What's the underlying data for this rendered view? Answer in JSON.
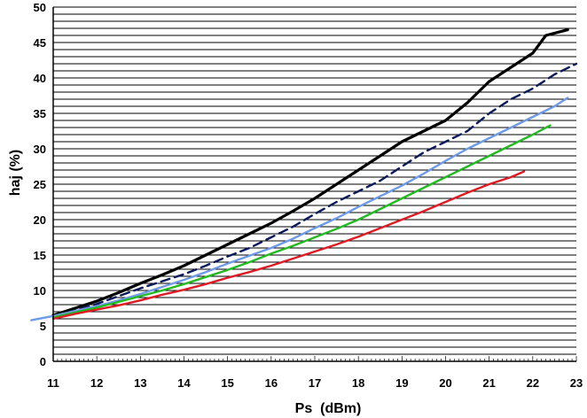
{
  "chart_data": {
    "type": "line",
    "xlabel": "Ps  (dBm)",
    "ylabel": "haj (%)",
    "xlim": [
      11,
      23
    ],
    "ylim": [
      0,
      50
    ],
    "x_ticks": [
      "11",
      "12",
      "13",
      "14",
      "15",
      "16",
      "17",
      "18",
      "19",
      "20",
      "21",
      "22",
      "23"
    ],
    "y_ticks": [
      "0",
      "5",
      "10",
      "15",
      "20",
      "25",
      "30",
      "35",
      "40",
      "45",
      "50"
    ],
    "grid": "horizontal lines every 1 unit",
    "series": [
      {
        "color": "#000000",
        "dash": "solid",
        "points": [
          [
            11,
            6.5
          ],
          [
            11.5,
            7.5
          ],
          [
            12,
            8.5
          ],
          [
            12.5,
            9.7
          ],
          [
            13,
            11
          ],
          [
            13.5,
            12.2
          ],
          [
            14,
            13.5
          ],
          [
            14.5,
            15
          ],
          [
            15,
            16.5
          ],
          [
            15.5,
            18
          ],
          [
            16,
            19.5
          ],
          [
            16.5,
            21.2
          ],
          [
            17,
            23
          ],
          [
            17.5,
            25
          ],
          [
            18,
            27
          ],
          [
            18.5,
            29
          ],
          [
            19,
            31
          ],
          [
            19.5,
            32.5
          ],
          [
            20,
            34
          ],
          [
            20.5,
            36.5
          ],
          [
            21,
            39.5
          ],
          [
            21.5,
            41.5
          ],
          [
            22,
            43.5
          ],
          [
            22.3,
            46
          ],
          [
            22.8,
            46.8
          ]
        ]
      },
      {
        "color": "#0a1a5c",
        "dash": "dashed",
        "points": [
          [
            11,
            6.3
          ],
          [
            11.5,
            7.2
          ],
          [
            12,
            8.1
          ],
          [
            12.5,
            9.2
          ],
          [
            13,
            10.3
          ],
          [
            13.5,
            11.3
          ],
          [
            14,
            12.3
          ],
          [
            14.5,
            13.5
          ],
          [
            15,
            14.8
          ],
          [
            15.5,
            16
          ],
          [
            16,
            17.5
          ],
          [
            16.5,
            19
          ],
          [
            17,
            20.8
          ],
          [
            17.5,
            22.5
          ],
          [
            18,
            24
          ],
          [
            18.5,
            25.5
          ],
          [
            19,
            27.5
          ],
          [
            19.5,
            29.5
          ],
          [
            20,
            31
          ],
          [
            20.5,
            32.5
          ],
          [
            21,
            35
          ],
          [
            21.5,
            37
          ],
          [
            22,
            38.5
          ],
          [
            22.5,
            40.5
          ],
          [
            23,
            42
          ]
        ]
      },
      {
        "color": "#6f9ae8",
        "dash": "solid",
        "points": [
          [
            10.5,
            5.8
          ],
          [
            11,
            6.4
          ],
          [
            11.5,
            7.1
          ],
          [
            12,
            7.8
          ],
          [
            12.5,
            8.6
          ],
          [
            13,
            9.5
          ],
          [
            13.5,
            10.5
          ],
          [
            14,
            11.5
          ],
          [
            14.5,
            12.6
          ],
          [
            15,
            13.8
          ],
          [
            15.5,
            14.9
          ],
          [
            16,
            16
          ],
          [
            16.5,
            17.3
          ],
          [
            17,
            18.8
          ],
          [
            17.5,
            20.2
          ],
          [
            18,
            21.8
          ],
          [
            18.5,
            23.3
          ],
          [
            19,
            24.8
          ],
          [
            19.5,
            26.5
          ],
          [
            20,
            28.3
          ],
          [
            20.5,
            30
          ],
          [
            21,
            31.5
          ],
          [
            21.5,
            33
          ],
          [
            22,
            34.5
          ],
          [
            22.5,
            36
          ],
          [
            22.8,
            37.2
          ]
        ]
      },
      {
        "color": "#22bb22",
        "dash": "solid",
        "points": [
          [
            11,
            6.2
          ],
          [
            11.5,
            6.9
          ],
          [
            12,
            7.6
          ],
          [
            12.5,
            8.4
          ],
          [
            13,
            9.2
          ],
          [
            13.5,
            10
          ],
          [
            14,
            10.9
          ],
          [
            14.5,
            11.9
          ],
          [
            15,
            12.9
          ],
          [
            15.5,
            14
          ],
          [
            16,
            15.2
          ],
          [
            16.5,
            16.3
          ],
          [
            17,
            17.5
          ],
          [
            17.5,
            18.7
          ],
          [
            18,
            20
          ],
          [
            18.5,
            21.5
          ],
          [
            19,
            23
          ],
          [
            19.5,
            24.5
          ],
          [
            20,
            26
          ],
          [
            20.5,
            27.5
          ],
          [
            21,
            29
          ],
          [
            21.5,
            30.5
          ],
          [
            22,
            32
          ],
          [
            22.4,
            33.3
          ]
        ]
      },
      {
        "color": "#e01b24",
        "dash": "solid",
        "points": [
          [
            11,
            6
          ],
          [
            11.5,
            6.7
          ],
          [
            12,
            7.3
          ],
          [
            12.5,
            7.9
          ],
          [
            13,
            8.6
          ],
          [
            13.5,
            9.4
          ],
          [
            14,
            10.1
          ],
          [
            14.5,
            10.9
          ],
          [
            15,
            11.8
          ],
          [
            15.5,
            12.6
          ],
          [
            16,
            13.5
          ],
          [
            16.5,
            14.5
          ],
          [
            17,
            15.5
          ],
          [
            17.5,
            16.5
          ],
          [
            18,
            17.6
          ],
          [
            18.5,
            18.8
          ],
          [
            19,
            20
          ],
          [
            19.5,
            21.2
          ],
          [
            20,
            22.5
          ],
          [
            20.5,
            23.8
          ],
          [
            21,
            25
          ],
          [
            21.5,
            26
          ],
          [
            21.8,
            26.8
          ]
        ]
      }
    ]
  }
}
